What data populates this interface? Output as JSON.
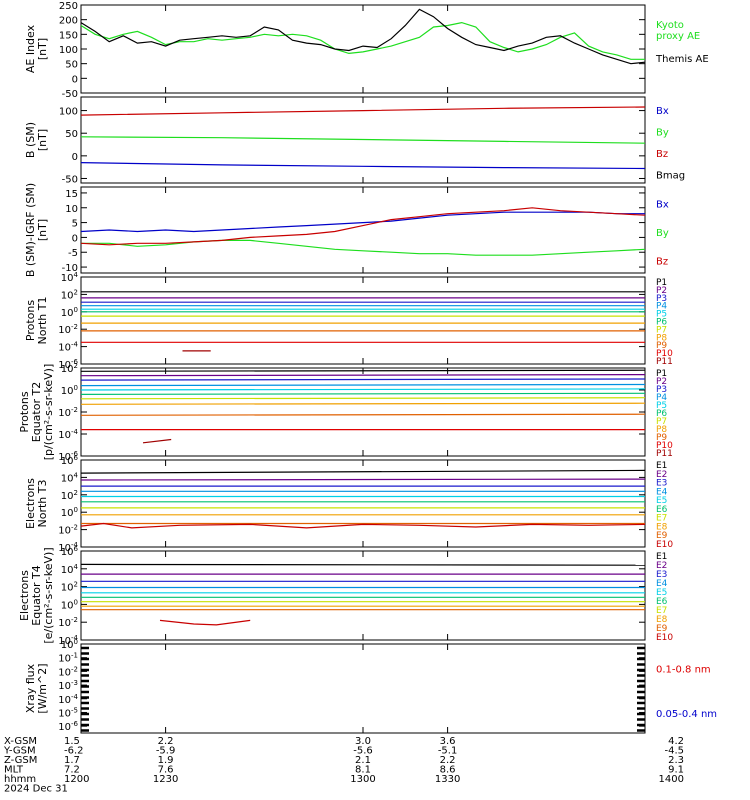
{
  "colors": {
    "black": "#000000",
    "blue": "#0000c8",
    "green": "#1ede1e",
    "red": "#c80000",
    "P1": "#000000",
    "P2": "#6a0088",
    "P3": "#1a1acc",
    "P4": "#0090e0",
    "P5": "#00d0e8",
    "P6": "#00c070",
    "P7": "#c8e000",
    "P8": "#f0a000",
    "P9": "#e06000",
    "P10": "#e00000",
    "P11": "#a00000",
    "xray_long": "#dd0000",
    "xray_short": "#0000cc"
  },
  "chart_data": [
    {
      "type": "line",
      "ylabel": "AE Index\n[nT]",
      "yticks": [
        "250",
        "200",
        "150",
        "100",
        "50",
        "0",
        "-50"
      ],
      "ylim": [
        -50,
        250
      ],
      "xlim": [
        1200,
        1400
      ],
      "series": [
        {
          "name": "Kyoto\nproxy AE",
          "color": "#1ede1e",
          "x": [
            1200,
            1205,
            1210,
            1215,
            1220,
            1225,
            1230,
            1235,
            1240,
            1245,
            1250,
            1255,
            1260,
            1265,
            1270,
            1275,
            1280,
            1285,
            1290,
            1295,
            1300,
            1305,
            1310,
            1315,
            1320,
            1325,
            1330,
            1335,
            1340,
            1345,
            1350,
            1355,
            1360,
            1365,
            1370,
            1375,
            1380,
            1385,
            1390,
            1395,
            1400
          ],
          "y": [
            180,
            150,
            135,
            150,
            160,
            140,
            115,
            125,
            125,
            135,
            130,
            135,
            140,
            150,
            145,
            150,
            145,
            130,
            100,
            85,
            90,
            100,
            110,
            125,
            140,
            175,
            180,
            190,
            175,
            125,
            105,
            90,
            100,
            115,
            140,
            155,
            110,
            90,
            80,
            65,
            65
          ]
        },
        {
          "name": "Themis AE",
          "color": "#000000",
          "x": [
            1200,
            1205,
            1210,
            1215,
            1220,
            1225,
            1230,
            1235,
            1240,
            1245,
            1250,
            1255,
            1260,
            1265,
            1270,
            1275,
            1280,
            1285,
            1290,
            1295,
            1300,
            1305,
            1310,
            1315,
            1320,
            1325,
            1330,
            1335,
            1340,
            1345,
            1350,
            1355,
            1360,
            1365,
            1370,
            1375,
            1380,
            1385,
            1390,
            1395,
            1400
          ],
          "y": [
            190,
            160,
            125,
            145,
            120,
            125,
            110,
            130,
            135,
            140,
            145,
            140,
            145,
            175,
            165,
            130,
            120,
            115,
            100,
            95,
            110,
            105,
            135,
            180,
            235,
            210,
            170,
            140,
            115,
            105,
            95,
            110,
            120,
            140,
            145,
            120,
            100,
            80,
            65,
            50,
            55
          ]
        }
      ]
    },
    {
      "type": "line",
      "ylabel": "B (SM)\n[nT]",
      "yticks": [
        "100",
        "50",
        "0",
        "-50"
      ],
      "ylim": [
        -60,
        130
      ],
      "xlim": [
        1200,
        1400
      ],
      "series": [
        {
          "name": "Bx",
          "color": "#0000c8",
          "x": [
            1200,
            1250,
            1300,
            1350,
            1400
          ],
          "y": [
            -15,
            -20,
            -23,
            -26,
            -28
          ]
        },
        {
          "name": "By",
          "color": "#1ede1e",
          "x": [
            1200,
            1250,
            1300,
            1350,
            1400
          ],
          "y": [
            42,
            40,
            36,
            32,
            28
          ]
        },
        {
          "name": "Bz",
          "color": "#c80000",
          "x": [
            1200,
            1250,
            1300,
            1350,
            1400
          ],
          "y": [
            90,
            95,
            100,
            105,
            108
          ]
        },
        {
          "name": "Bmag",
          "color": "#000000",
          "x": [],
          "y": []
        }
      ]
    },
    {
      "type": "line",
      "ylabel": "B (SM)-IGRF (SM)\n[nT]",
      "yticks": [
        "15",
        "10",
        "5",
        "0",
        "-5",
        "-10"
      ],
      "ylim": [
        -12,
        17
      ],
      "xlim": [
        1200,
        1400
      ],
      "series": [
        {
          "name": "Bx",
          "color": "#0000c8",
          "x": [
            1200,
            1210,
            1220,
            1230,
            1240,
            1250,
            1260,
            1270,
            1280,
            1290,
            1300,
            1310,
            1320,
            1330,
            1340,
            1350,
            1360,
            1370,
            1380,
            1390,
            1400
          ],
          "y": [
            2,
            2.5,
            2,
            2.5,
            2,
            2.5,
            3,
            3.5,
            4,
            4.5,
            5,
            5.5,
            6.5,
            7.5,
            8,
            8.5,
            8.5,
            8.5,
            8.5,
            8,
            8
          ]
        },
        {
          "name": "By",
          "color": "#1ede1e",
          "x": [
            1200,
            1210,
            1220,
            1230,
            1240,
            1250,
            1260,
            1270,
            1280,
            1290,
            1300,
            1310,
            1320,
            1330,
            1340,
            1350,
            1360,
            1370,
            1380,
            1390,
            1400
          ],
          "y": [
            -2,
            -2,
            -3,
            -2.5,
            -1.5,
            -1,
            -1,
            -2,
            -3,
            -4,
            -4.5,
            -5,
            -5.5,
            -5.5,
            -6,
            -6,
            -6,
            -5.5,
            -5,
            -4.5,
            -4
          ]
        },
        {
          "name": "Bz",
          "color": "#c80000",
          "x": [
            1200,
            1210,
            1220,
            1230,
            1240,
            1250,
            1260,
            1270,
            1280,
            1290,
            1300,
            1310,
            1320,
            1330,
            1340,
            1350,
            1360,
            1370,
            1380,
            1390,
            1400
          ],
          "y": [
            -2,
            -2.5,
            -2,
            -2,
            -1.5,
            -1,
            0,
            0.5,
            1,
            2,
            4,
            6,
            7,
            8,
            8.5,
            9,
            10,
            9,
            8.5,
            8,
            7.5
          ]
        }
      ]
    },
    {
      "type": "line",
      "log": true,
      "ylabel": "Protons\nNorth T1",
      "yticks": [
        "10^4",
        "10^2",
        "10^0",
        "10^-2",
        "10^-4",
        "10^-6"
      ],
      "ylim_exp": [
        -6,
        4
      ],
      "xlim": [
        1200,
        1400
      ],
      "series": [
        {
          "name": "P1",
          "color": "#000000",
          "x": [
            1200,
            1400
          ],
          "y": [
            2.3,
            2.3
          ]
        },
        {
          "name": "P2",
          "color": "#6a0088",
          "x": [
            1200,
            1400
          ],
          "y": [
            1.6,
            1.6
          ]
        },
        {
          "name": "P3",
          "color": "#1a1acc",
          "x": [
            1200,
            1400
          ],
          "y": [
            1.1,
            1.1
          ]
        },
        {
          "name": "P4",
          "color": "#0090e0",
          "x": [
            1200,
            1400
          ],
          "y": [
            0.7,
            0.7
          ]
        },
        {
          "name": "P5",
          "color": "#00d0e8",
          "x": [
            1200,
            1400
          ],
          "y": [
            0.3,
            0.3
          ]
        },
        {
          "name": "P6",
          "color": "#00c070",
          "x": [
            1200,
            1400
          ],
          "y": [
            0,
            0
          ]
        },
        {
          "name": "P7",
          "color": "#c8e000",
          "x": [
            1200,
            1400
          ],
          "y": [
            -0.5,
            -0.5
          ]
        },
        {
          "name": "P8",
          "color": "#f0a000",
          "x": [
            1200,
            1400
          ],
          "y": [
            -1.3,
            -1.3
          ]
        },
        {
          "name": "P9",
          "color": "#e06000",
          "x": [
            1200,
            1400
          ],
          "y": [
            -2.2,
            -2.2
          ]
        },
        {
          "name": "P10",
          "color": "#e00000",
          "x": [
            1200,
            1400
          ],
          "y": [
            -3.5,
            -3.5
          ]
        },
        {
          "name": "P11",
          "color": "#a00000",
          "x": [
            1236,
            1246
          ],
          "y": [
            -4.5,
            -4.5
          ]
        }
      ]
    },
    {
      "type": "line",
      "log": true,
      "ylabel": "Protons\nEquator T2\n[p/(cm²-s-sr-keV)]",
      "yticks": [
        "10^2",
        "10^0",
        "10^-2",
        "10^-4",
        "10^-6"
      ],
      "ylim_exp": [
        -6,
        2
      ],
      "xlim": [
        1200,
        1400
      ],
      "series": [
        {
          "name": "P1",
          "color": "#000000",
          "x": [
            1200,
            1400
          ],
          "y": [
            1.7,
            1.8
          ]
        },
        {
          "name": "P2",
          "color": "#6a0088",
          "x": [
            1200,
            1400
          ],
          "y": [
            1.3,
            1.4
          ]
        },
        {
          "name": "P3",
          "color": "#1a1acc",
          "x": [
            1200,
            1400
          ],
          "y": [
            0.9,
            1.0
          ]
        },
        {
          "name": "P4",
          "color": "#0090e0",
          "x": [
            1200,
            1400
          ],
          "y": [
            0.4,
            0.5
          ]
        },
        {
          "name": "P5",
          "color": "#00d0e8",
          "x": [
            1200,
            1400
          ],
          "y": [
            0,
            0.1
          ]
        },
        {
          "name": "P6",
          "color": "#00c070",
          "x": [
            1200,
            1400
          ],
          "y": [
            -0.4,
            -0.3
          ]
        },
        {
          "name": "P7",
          "color": "#c8e000",
          "x": [
            1200,
            1400
          ],
          "y": [
            -0.8,
            -0.7
          ]
        },
        {
          "name": "P8",
          "color": "#f0a000",
          "x": [
            1200,
            1400
          ],
          "y": [
            -1.3,
            -1.2
          ]
        },
        {
          "name": "P9",
          "color": "#e06000",
          "x": [
            1200,
            1400
          ],
          "y": [
            -2.3,
            -2.2
          ]
        },
        {
          "name": "P10",
          "color": "#e00000",
          "x": [
            1200,
            1400
          ],
          "y": [
            -3.6,
            -3.6
          ]
        },
        {
          "name": "P11",
          "color": "#a00000",
          "x": [
            1222,
            1232
          ],
          "y": [
            -4.8,
            -4.5
          ]
        }
      ]
    },
    {
      "type": "line",
      "log": true,
      "ylabel": "Electrons\nNorth T3",
      "yticks": [
        "10^6",
        "10^4",
        "10^2",
        "10^0",
        "10^-2",
        "10^-4"
      ],
      "ylim_exp": [
        -4,
        6
      ],
      "xlim": [
        1200,
        1400
      ],
      "series": [
        {
          "name": "E1",
          "color": "#000000",
          "x": [
            1200,
            1400
          ],
          "y": [
            4.5,
            4.8
          ]
        },
        {
          "name": "E2",
          "color": "#6a0088",
          "x": [
            1200,
            1400
          ],
          "y": [
            3.7,
            3.8
          ]
        },
        {
          "name": "E3",
          "color": "#1a1acc",
          "x": [
            1200,
            1400
          ],
          "y": [
            3.0,
            3.0
          ]
        },
        {
          "name": "E4",
          "color": "#0090e0",
          "x": [
            1200,
            1400
          ],
          "y": [
            2.4,
            2.4
          ]
        },
        {
          "name": "E5",
          "color": "#00d0e8",
          "x": [
            1200,
            1400
          ],
          "y": [
            1.8,
            1.8
          ]
        },
        {
          "name": "E6",
          "color": "#00c070",
          "x": [
            1200,
            1400
          ],
          "y": [
            1.2,
            1.2
          ]
        },
        {
          "name": "E7",
          "color": "#c8e000",
          "x": [
            1200,
            1400
          ],
          "y": [
            0.5,
            0.5
          ]
        },
        {
          "name": "E8",
          "color": "#f0a000",
          "x": [
            1200,
            1400
          ],
          "y": [
            -0.3,
            -0.3
          ]
        },
        {
          "name": "E9",
          "color": "#e06000",
          "x": [
            1200,
            1400
          ],
          "y": [
            -1.3,
            -1.3
          ]
        },
        {
          "name": "E10",
          "color": "#c80000",
          "x": [
            1200,
            1208,
            1218,
            1235,
            1260,
            1280,
            1300,
            1320,
            1340,
            1360,
            1380,
            1400
          ],
          "y": [
            -1.6,
            -1.3,
            -1.8,
            -1.5,
            -1.4,
            -1.8,
            -1.4,
            -1.5,
            -1.7,
            -1.4,
            -1.5,
            -1.4
          ]
        }
      ]
    },
    {
      "type": "line",
      "log": true,
      "ylabel": "Electrons\nEquator T4\n[e/(cm²-s-sr-keV)]",
      "yticks": [
        "10^6",
        "10^4",
        "10^2",
        "10^0",
        "10^-2",
        "10^-4"
      ],
      "ylim_exp": [
        -4,
        6
      ],
      "xlim": [
        1200,
        1400
      ],
      "series": [
        {
          "name": "E1",
          "color": "#000000",
          "x": [
            1200,
            1400
          ],
          "y": [
            4.5,
            4.4
          ]
        },
        {
          "name": "E2",
          "color": "#6a0088",
          "x": [
            1200,
            1400
          ],
          "y": [
            3.4,
            3.4
          ]
        },
        {
          "name": "E3",
          "color": "#1a1acc",
          "x": [
            1200,
            1400
          ],
          "y": [
            2.6,
            2.6
          ]
        },
        {
          "name": "E4",
          "color": "#0090e0",
          "x": [
            1200,
            1400
          ],
          "y": [
            1.9,
            1.9
          ]
        },
        {
          "name": "E5",
          "color": "#00d0e8",
          "x": [
            1200,
            1400
          ],
          "y": [
            1.3,
            1.3
          ]
        },
        {
          "name": "E6",
          "color": "#00c070",
          "x": [
            1200,
            1400
          ],
          "y": [
            0.8,
            0.8
          ]
        },
        {
          "name": "E7",
          "color": "#c8e000",
          "x": [
            1200,
            1400
          ],
          "y": [
            0.3,
            0.3
          ]
        },
        {
          "name": "E8",
          "color": "#f0a000",
          "x": [
            1200,
            1400
          ],
          "y": [
            -0.2,
            -0.2
          ]
        },
        {
          "name": "E9",
          "color": "#e06000",
          "x": [
            1200,
            1400
          ],
          "y": [
            -0.6,
            -0.6
          ]
        },
        {
          "name": "E10",
          "color": "#c80000",
          "x": [
            1228,
            1240,
            1248,
            1260
          ],
          "y": [
            -1.8,
            -2.2,
            -2.3,
            -1.8
          ]
        }
      ]
    },
    {
      "type": "line",
      "log": true,
      "ylabel": "Xray flux\n[W/m^2]",
      "yticks": [
        "10^0",
        "10^-1",
        "10^-2",
        "10^-3",
        "10^-4",
        "10^-5",
        "10^-6"
      ],
      "ylim_exp": [
        -6.5,
        0
      ],
      "xlim": [
        1200,
        1400
      ],
      "series": [
        {
          "name": "0.1-0.8 nm",
          "color": "#dd0000",
          "x": [],
          "y": []
        },
        {
          "name": "0.05-0.4 nm",
          "color": "#0000cc",
          "x": [],
          "y": []
        }
      ]
    }
  ],
  "orbit_table": {
    "rows": [
      {
        "label": "X-GSM",
        "values": [
          "1.5",
          "2.2",
          "3.0",
          "3.6",
          "4.2"
        ]
      },
      {
        "label": "Y-GSM",
        "values": [
          "-6.2",
          "-5.9",
          "-5.6",
          "-5.1",
          "-4.5"
        ]
      },
      {
        "label": "Z-GSM",
        "values": [
          "1.7",
          "1.9",
          "2.1",
          "2.2",
          "2.3"
        ]
      },
      {
        "label": "MLT",
        "values": [
          "7.2",
          "7.6",
          "8.1",
          "8.6",
          "9.1"
        ]
      },
      {
        "label": "hhmm",
        "values": [
          "1200",
          "1230",
          "1300",
          "1330",
          "1400"
        ]
      }
    ],
    "date": "2024 Dec 31"
  }
}
